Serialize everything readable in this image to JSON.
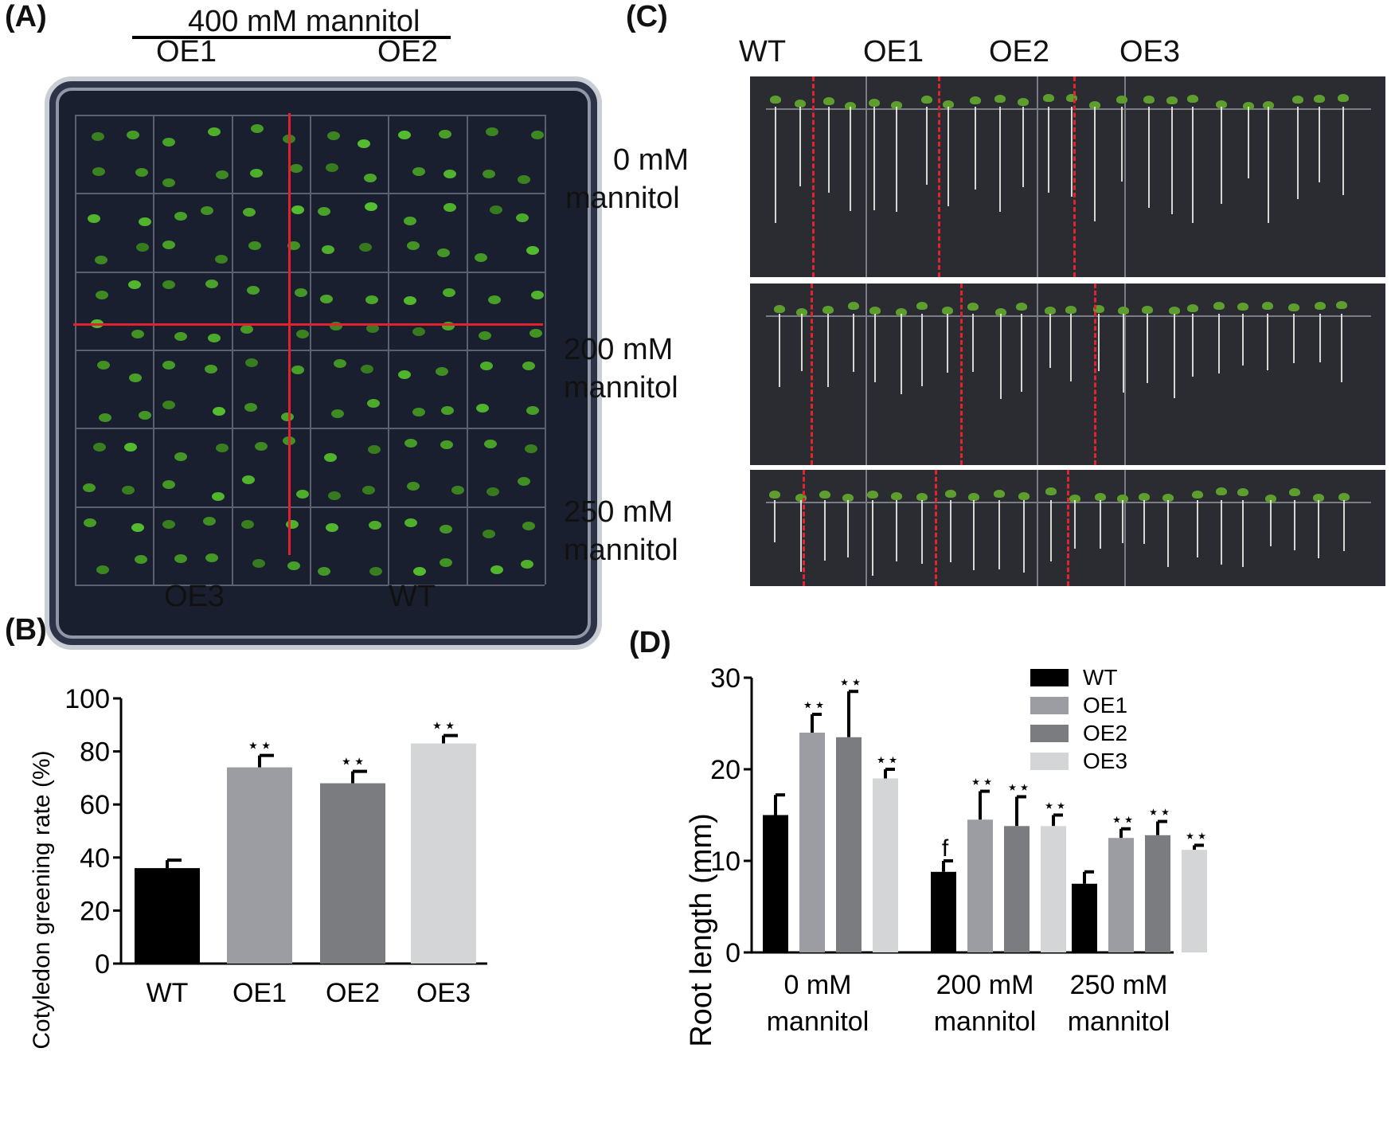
{
  "panels": {
    "a": {
      "label": "(A)",
      "treatment": "400 mM mannitol",
      "top_left": "OE1",
      "top_right": "OE2",
      "bottom_left": "OE3",
      "bottom_right": "WT"
    },
    "c": {
      "label": "(C)",
      "genotypes": [
        "WT",
        "OE1",
        "OE2",
        "OE3"
      ],
      "rows": [
        {
          "line1": "0 mM",
          "line2": "mannitol"
        },
        {
          "line1": "200 mM",
          "line2": "mannitol"
        },
        {
          "line1": "250 mM",
          "line2": "mannitol"
        }
      ]
    },
    "b": {
      "label": "(B)"
    },
    "d": {
      "label": "(D)"
    }
  },
  "colors": {
    "WT": "#000000",
    "OE1": "#9c9da2",
    "OE2": "#7b7c80",
    "OE3": "#d4d5d7",
    "red_line": "#e2202f"
  },
  "chart_data": [
    {
      "type": "bar",
      "categories": [
        "WT",
        "OE1",
        "OE2",
        "OE3"
      ],
      "values": [
        36,
        74,
        68,
        83
      ],
      "errors": [
        3,
        4.5,
        4.5,
        3
      ],
      "significance": [
        "",
        "**",
        "**",
        "**"
      ],
      "ylabel": "Cotyledon greening rate (%)",
      "xlabel": "",
      "ylim": [
        0,
        100
      ],
      "yticks": [
        0,
        20,
        40,
        60,
        80,
        100
      ],
      "grid": false
    },
    {
      "type": "bar",
      "categories": [
        {
          "line1": "0 mM",
          "line2": "mannitol"
        },
        {
          "line1": "200 mM",
          "line2": "mannitol"
        },
        {
          "line1": "250 mM",
          "line2": "mannitol"
        }
      ],
      "series": [
        {
          "name": "WT",
          "values": [
            15,
            8.8,
            7.5
          ],
          "errors": [
            2.2,
            1.2,
            1.3
          ],
          "marks": [
            "",
            "f",
            ""
          ]
        },
        {
          "name": "OE1",
          "values": [
            24,
            14.5,
            12.5
          ],
          "errors": [
            2,
            3.1,
            1
          ],
          "marks": [
            "**",
            "**",
            "**"
          ]
        },
        {
          "name": "OE2",
          "values": [
            23.5,
            13.8,
            12.8
          ],
          "errors": [
            5,
            3.2,
            1.5
          ],
          "marks": [
            "**",
            "**",
            "**"
          ]
        },
        {
          "name": "OE3",
          "values": [
            19,
            13.8,
            11.2
          ],
          "errors": [
            1,
            1.2,
            0.5
          ],
          "marks": [
            "**",
            "**",
            "**"
          ]
        }
      ],
      "ylabel": "Root length (mm)",
      "xlabel": "",
      "ylim": [
        0,
        30
      ],
      "yticks": [
        0,
        10,
        20,
        30
      ],
      "legend": "top-right",
      "grid": false
    }
  ]
}
